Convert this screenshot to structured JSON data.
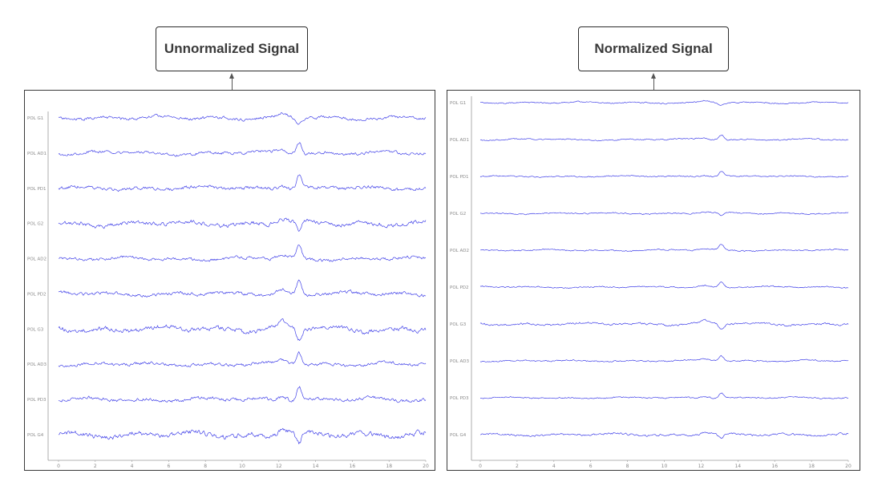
{
  "panels": [
    {
      "title": "Unnormalized Signal",
      "channels": [
        "POL G1",
        "POL AD1",
        "POL PD1",
        "POL G2",
        "POL AD2",
        "POL PD2",
        "POL G3",
        "POL AD3",
        "POL PD3",
        "POL G4"
      ],
      "amplitudes": [
        7,
        7,
        8,
        10,
        7,
        8,
        11,
        7,
        8,
        12
      ],
      "x_ticks": [
        "0",
        "2",
        "4",
        "6",
        "8",
        "10",
        "12",
        "14",
        "16",
        "18",
        "20"
      ],
      "x_range": [
        0,
        20
      ],
      "trace_color": "#4040e8"
    },
    {
      "title": "Normalized Signal",
      "channels": [
        "POL G1",
        "POL AD1",
        "POL PD1",
        "POL G2",
        "POL AD2",
        "POL PD2",
        "POL G3",
        "POL AD3",
        "POL PD3",
        "POL G4"
      ],
      "amplitudes": [
        3,
        3,
        3,
        3,
        3,
        3,
        5,
        3,
        3,
        5
      ],
      "x_ticks": [
        "0",
        "2",
        "4",
        "6",
        "8",
        "10",
        "12",
        "14",
        "16",
        "18",
        "20"
      ],
      "x_range": [
        0,
        20
      ],
      "trace_color": "#4040e8"
    }
  ]
}
